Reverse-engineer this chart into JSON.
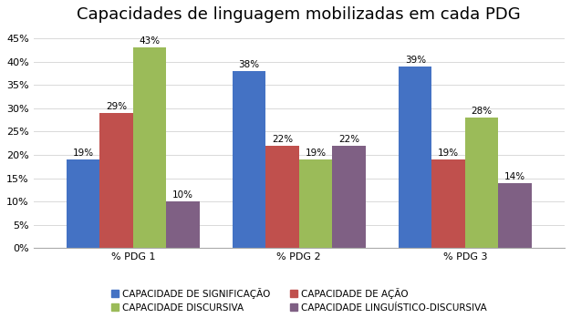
{
  "title": "Capacidades de linguagem mobilizadas em cada PDG",
  "categories": [
    "% PDG 1",
    "% PDG 2",
    "% PDG 3"
  ],
  "series": [
    {
      "name": "CAPACIDADE DE SIGNIFICAÇÃO",
      "color": "#4472C4",
      "values": [
        0.19,
        0.38,
        0.39
      ]
    },
    {
      "name": "CAPACIDADE DE AÇÃO",
      "color": "#C0504D",
      "values": [
        0.29,
        0.22,
        0.19
      ]
    },
    {
      "name": "CAPACIDADE DISCURSIVA",
      "color": "#9BBB59",
      "values": [
        0.43,
        0.19,
        0.28
      ]
    },
    {
      "name": "CAPACIDADE LINGUÍSTICO-DISCURSIVA",
      "color": "#7F6084",
      "values": [
        0.1,
        0.22,
        0.14
      ]
    }
  ],
  "ylim": [
    0,
    0.47
  ],
  "yticks": [
    0.0,
    0.05,
    0.1,
    0.15,
    0.2,
    0.25,
    0.3,
    0.35,
    0.4,
    0.45
  ],
  "ytick_labels": [
    "0%",
    "5%",
    "10%",
    "15%",
    "20%",
    "25%",
    "30%",
    "35%",
    "40%",
    "45%"
  ],
  "bar_width": 0.2,
  "background_color": "#FFFFFF",
  "title_fontsize": 13,
  "label_fontsize": 7.5,
  "tick_fontsize": 8,
  "legend_fontsize": 7.5,
  "grid_color": "#D9D9D9",
  "legend_order": [
    0,
    2,
    1,
    3
  ]
}
